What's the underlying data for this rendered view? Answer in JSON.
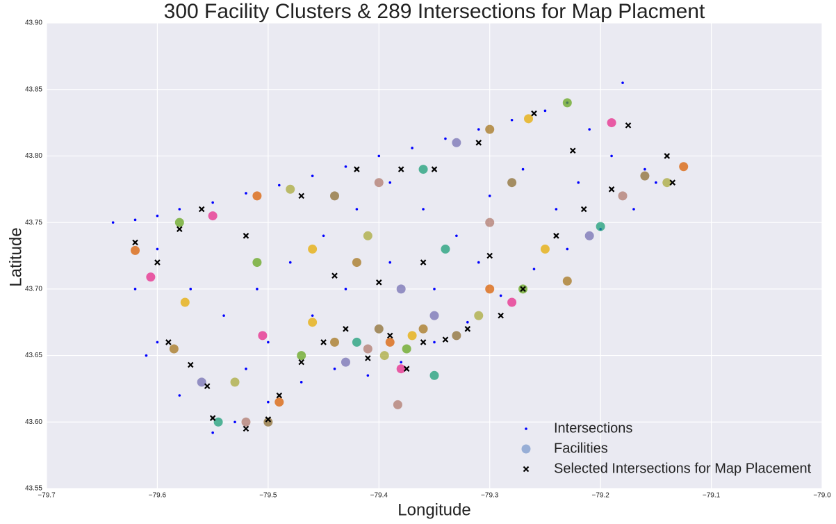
{
  "chart_data": {
    "type": "scatter",
    "title": "300 Facility Clusters & 289 Intersections for Map Placment",
    "x_label": "Longitude",
    "y_label": "Latitude",
    "xlim": [
      -79.7,
      -79.0
    ],
    "xticks": [
      {
        "value": -79.7,
        "label": "−79.7"
      },
      {
        "value": -79.6,
        "label": "−79.6"
      },
      {
        "value": -79.5,
        "label": "−79.5"
      },
      {
        "value": -79.4,
        "label": "−79.4"
      },
      {
        "value": -79.3,
        "label": "−79.3"
      },
      {
        "value": -79.2,
        "label": "−79.2"
      },
      {
        "value": -79.1,
        "label": "−79.1"
      },
      {
        "value": -79.0,
        "label": "−79.0"
      }
    ],
    "ylim": [
      43.55,
      43.9
    ],
    "yticks": [
      43.55,
      {
        "value": 43.6,
        "label": "43.60"
      },
      43.65,
      {
        "value": 43.7,
        "label": "43.70"
      },
      43.75,
      {
        "value": 43.8,
        "label": "43.80"
      },
      43.85,
      {
        "value": 43.9,
        "label": "43.90"
      }
    ],
    "grid": true,
    "legend": "lower right",
    "series": [
      {
        "name": "Intersections",
        "color": "#0000ff",
        "marker": "dot",
        "x": [
          -79.64,
          -79.62,
          -79.6,
          -79.58,
          -79.55,
          -79.52,
          -79.49,
          -79.46,
          -79.43,
          -79.4,
          -79.37,
          -79.34,
          -79.31,
          -79.28,
          -79.25,
          -79.23,
          -79.21,
          -79.19,
          -79.18,
          -79.16,
          -79.15,
          -79.17,
          -79.2,
          -79.23,
          -79.26,
          -79.29,
          -79.32,
          -79.35,
          -79.38,
          -79.41,
          -79.44,
          -79.47,
          -79.5,
          -79.53,
          -79.55,
          -79.58,
          -79.6,
          -79.61,
          -79.62,
          -79.6,
          -79.57,
          -79.54,
          -79.51,
          -79.48,
          -79.45,
          -79.42,
          -79.39,
          -79.36,
          -79.33,
          -79.3,
          -79.27,
          -79.24,
          -79.22,
          -79.39,
          -79.43,
          -79.46,
          -79.5,
          -79.52,
          -79.35,
          -79.31
        ],
        "y": [
          43.75,
          43.752,
          43.755,
          43.76,
          43.765,
          43.772,
          43.778,
          43.785,
          43.792,
          43.8,
          43.806,
          43.813,
          43.82,
          43.827,
          43.834,
          43.84,
          43.82,
          43.8,
          43.855,
          43.79,
          43.78,
          43.76,
          43.745,
          43.73,
          43.715,
          43.695,
          43.675,
          43.66,
          43.645,
          43.635,
          43.64,
          43.63,
          43.615,
          43.6,
          43.592,
          43.62,
          43.66,
          43.65,
          43.7,
          43.73,
          43.7,
          43.68,
          43.7,
          43.72,
          43.74,
          43.76,
          43.78,
          43.76,
          43.74,
          43.77,
          43.79,
          43.76,
          43.78,
          43.72,
          43.7,
          43.68,
          43.66,
          43.64,
          43.7,
          43.72
        ]
      },
      {
        "name": "Facilities",
        "color": "#7b9acc",
        "marker": "circle",
        "palette": [
          "#d95f02",
          "#e7298a",
          "#66a61e",
          "#e6ab02",
          "#a6761d",
          "#7570b3",
          "#1b9e77",
          "#b07a6e",
          "#8c6d31",
          "#a9a93b"
        ],
        "x": [
          -79.62,
          -79.606,
          -79.58,
          -79.575,
          -79.585,
          -79.56,
          -79.545,
          -79.52,
          -79.5,
          -79.53,
          -79.49,
          -79.505,
          -79.47,
          -79.46,
          -79.44,
          -79.43,
          -79.42,
          -79.41,
          -79.4,
          -79.395,
          -79.39,
          -79.38,
          -79.375,
          -79.37,
          -79.36,
          -79.35,
          -79.35,
          -79.383,
          -79.33,
          -79.31,
          -79.3,
          -79.28,
          -79.27,
          -79.25,
          -79.23,
          -79.21,
          -79.2,
          -79.18,
          -79.16,
          -79.14,
          -79.125,
          -79.19,
          -79.23,
          -79.265,
          -79.3,
          -79.33,
          -79.36,
          -79.4,
          -79.44,
          -79.48,
          -79.51,
          -79.55,
          -79.51,
          -79.46,
          -79.42,
          -79.38,
          -79.34,
          -79.3,
          -79.28,
          -79.41
        ],
        "y": [
          43.729,
          43.709,
          43.75,
          43.69,
          43.655,
          43.63,
          43.6,
          43.6,
          43.6,
          43.63,
          43.615,
          43.665,
          43.65,
          43.675,
          43.66,
          43.645,
          43.66,
          43.655,
          43.67,
          43.65,
          43.66,
          43.64,
          43.655,
          43.665,
          43.67,
          43.68,
          43.635,
          43.613,
          43.665,
          43.68,
          43.7,
          43.69,
          43.7,
          43.73,
          43.706,
          43.74,
          43.747,
          43.77,
          43.785,
          43.78,
          43.792,
          43.825,
          43.84,
          43.828,
          43.82,
          43.81,
          43.79,
          43.78,
          43.77,
          43.775,
          43.77,
          43.755,
          43.72,
          43.73,
          43.72,
          43.7,
          43.73,
          43.75,
          43.78,
          43.74
        ]
      },
      {
        "name": "Selected Intersections for Map Placement",
        "color": "#000000",
        "marker": "x",
        "x": [
          -79.62,
          -79.6,
          -79.59,
          -79.57,
          -79.555,
          -79.55,
          -79.52,
          -79.5,
          -79.49,
          -79.47,
          -79.45,
          -79.43,
          -79.41,
          -79.39,
          -79.375,
          -79.36,
          -79.34,
          -79.32,
          -79.29,
          -79.27,
          -79.24,
          -79.215,
          -79.19,
          -79.175,
          -79.14,
          -79.135,
          -79.225,
          -79.26,
          -79.31,
          -79.35,
          -79.38,
          -79.42,
          -79.47,
          -79.52,
          -79.56,
          -79.58,
          -79.44,
          -79.4,
          -79.36,
          -79.3
        ],
        "y": [
          43.735,
          43.72,
          43.66,
          43.643,
          43.627,
          43.603,
          43.595,
          43.602,
          43.62,
          43.645,
          43.66,
          43.67,
          43.648,
          43.665,
          43.64,
          43.66,
          43.662,
          43.67,
          43.68,
          43.7,
          43.74,
          43.76,
          43.775,
          43.823,
          43.8,
          43.78,
          43.804,
          43.832,
          43.81,
          43.79,
          43.79,
          43.79,
          43.77,
          43.74,
          43.76,
          43.745,
          43.71,
          43.705,
          43.72,
          43.725
        ]
      }
    ]
  }
}
